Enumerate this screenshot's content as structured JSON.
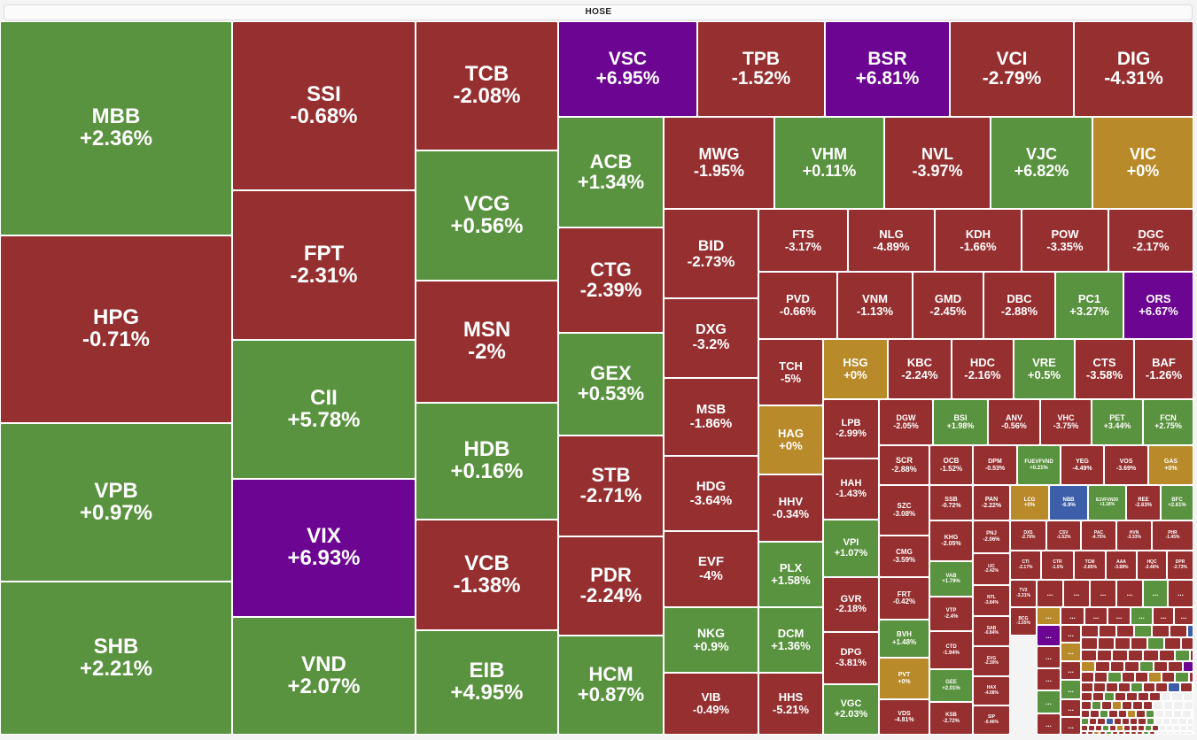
{
  "header": {
    "title": "HOSE"
  },
  "colors": {
    "up": "#5a9340",
    "down": "#963030",
    "ref": "#b98a29",
    "ceiling": "#6c0591",
    "floor": "#3d5ea8",
    "faint": "#f0f0f0"
  },
  "overflow_label": "...",
  "tiles": [
    {
      "sym": "MBB",
      "pct": "+2.36%",
      "status": "up"
    },
    {
      "sym": "HPG",
      "pct": "-0.71%",
      "status": "down"
    },
    {
      "sym": "VPB",
      "pct": "+0.97%",
      "status": "up"
    },
    {
      "sym": "SHB",
      "pct": "+2.21%",
      "status": "up"
    },
    {
      "sym": "SSI",
      "pct": "-0.68%",
      "status": "down"
    },
    {
      "sym": "FPT",
      "pct": "-2.31%",
      "status": "down"
    },
    {
      "sym": "CII",
      "pct": "+5.78%",
      "status": "up"
    },
    {
      "sym": "VIX",
      "pct": "+6.93%",
      "status": "ceiling"
    },
    {
      "sym": "VND",
      "pct": "+2.07%",
      "status": "up"
    },
    {
      "sym": "TCB",
      "pct": "-2.08%",
      "status": "down"
    },
    {
      "sym": "VCG",
      "pct": "+0.56%",
      "status": "up"
    },
    {
      "sym": "MSN",
      "pct": "-2%",
      "status": "down"
    },
    {
      "sym": "HDB",
      "pct": "+0.16%",
      "status": "up"
    },
    {
      "sym": "VCB",
      "pct": "-1.38%",
      "status": "down"
    },
    {
      "sym": "EIB",
      "pct": "+4.95%",
      "status": "up"
    },
    {
      "sym": "VSC",
      "pct": "+6.95%",
      "status": "ceiling"
    },
    {
      "sym": "TPB",
      "pct": "-1.52%",
      "status": "down"
    },
    {
      "sym": "BSR",
      "pct": "+6.81%",
      "status": "ceiling"
    },
    {
      "sym": "VCI",
      "pct": "-2.79%",
      "status": "down"
    },
    {
      "sym": "DIG",
      "pct": "-4.31%",
      "status": "down"
    },
    {
      "sym": "ACB",
      "pct": "+1.34%",
      "status": "up"
    },
    {
      "sym": "CTG",
      "pct": "-2.39%",
      "status": "down"
    },
    {
      "sym": "GEX",
      "pct": "+0.53%",
      "status": "up"
    },
    {
      "sym": "STB",
      "pct": "-2.71%",
      "status": "down"
    },
    {
      "sym": "PDR",
      "pct": "-2.24%",
      "status": "down"
    },
    {
      "sym": "HCM",
      "pct": "+0.87%",
      "status": "up"
    },
    {
      "sym": "MWG",
      "pct": "-1.95%",
      "status": "down"
    },
    {
      "sym": "VHM",
      "pct": "+0.11%",
      "status": "up"
    },
    {
      "sym": "NVL",
      "pct": "-3.97%",
      "status": "down"
    },
    {
      "sym": "VJC",
      "pct": "+6.82%",
      "status": "up"
    },
    {
      "sym": "VIC",
      "pct": "+0%",
      "status": "ref"
    },
    {
      "sym": "BID",
      "pct": "-2.73%",
      "status": "down"
    },
    {
      "sym": "DXG",
      "pct": "-3.2%",
      "status": "down"
    },
    {
      "sym": "MSB",
      "pct": "-1.86%",
      "status": "down"
    },
    {
      "sym": "HDG",
      "pct": "-3.64%",
      "status": "down"
    },
    {
      "sym": "EVF",
      "pct": "-4%",
      "status": "down"
    },
    {
      "sym": "NKG",
      "pct": "+0.9%",
      "status": "up"
    },
    {
      "sym": "VIB",
      "pct": "-0.49%",
      "status": "down"
    },
    {
      "sym": "FTS",
      "pct": "-3.17%",
      "status": "down"
    },
    {
      "sym": "NLG",
      "pct": "-4.89%",
      "status": "down"
    },
    {
      "sym": "KDH",
      "pct": "-1.66%",
      "status": "down"
    },
    {
      "sym": "POW",
      "pct": "-3.35%",
      "status": "down"
    },
    {
      "sym": "DGC",
      "pct": "-2.17%",
      "status": "down"
    },
    {
      "sym": "PVD",
      "pct": "-0.66%",
      "status": "down"
    },
    {
      "sym": "VNM",
      "pct": "-1.13%",
      "status": "down"
    },
    {
      "sym": "GMD",
      "pct": "-2.45%",
      "status": "down"
    },
    {
      "sym": "DBC",
      "pct": "-2.88%",
      "status": "down"
    },
    {
      "sym": "PC1",
      "pct": "+3.27%",
      "status": "up"
    },
    {
      "sym": "ORS",
      "pct": "+6.67%",
      "status": "ceiling"
    },
    {
      "sym": "TCH",
      "pct": "-5%",
      "status": "down"
    },
    {
      "sym": "HSG",
      "pct": "+0%",
      "status": "ref"
    },
    {
      "sym": "KBC",
      "pct": "-2.24%",
      "status": "down"
    },
    {
      "sym": "HDC",
      "pct": "-2.16%",
      "status": "down"
    },
    {
      "sym": "VRE",
      "pct": "+0.5%",
      "status": "up"
    },
    {
      "sym": "CTS",
      "pct": "-3.58%",
      "status": "down"
    },
    {
      "sym": "BAF",
      "pct": "-1.26%",
      "status": "down"
    },
    {
      "sym": "HAG",
      "pct": "+0%",
      "status": "ref"
    },
    {
      "sym": "HHV",
      "pct": "-0.34%",
      "status": "down"
    },
    {
      "sym": "PLX",
      "pct": "+1.58%",
      "status": "up"
    },
    {
      "sym": "DCM",
      "pct": "+1.36%",
      "status": "up"
    },
    {
      "sym": "HHS",
      "pct": "-5.21%",
      "status": "down"
    },
    {
      "sym": "LPB",
      "pct": "-2.99%",
      "status": "down"
    },
    {
      "sym": "HAH",
      "pct": "-1.43%",
      "status": "down"
    },
    {
      "sym": "VPI",
      "pct": "+1.07%",
      "status": "up"
    },
    {
      "sym": "GVR",
      "pct": "-2.18%",
      "status": "down"
    },
    {
      "sym": "DPG",
      "pct": "-3.81%",
      "status": "down"
    },
    {
      "sym": "VGC",
      "pct": "+2.03%",
      "status": "up"
    },
    {
      "sym": "DGW",
      "pct": "-2.05%",
      "status": "down"
    },
    {
      "sym": "BSI",
      "pct": "+1.98%",
      "status": "up"
    },
    {
      "sym": "ANV",
      "pct": "-0.56%",
      "status": "down"
    },
    {
      "sym": "VHC",
      "pct": "-3.75%",
      "status": "down"
    },
    {
      "sym": "PET",
      "pct": "+3.44%",
      "status": "up"
    },
    {
      "sym": "FCN",
      "pct": "+2.75%",
      "status": "up"
    },
    {
      "sym": "SCR",
      "pct": "-2.88%",
      "status": "down"
    },
    {
      "sym": "SZC",
      "pct": "-3.08%",
      "status": "down"
    },
    {
      "sym": "CMG",
      "pct": "-3.59%",
      "status": "down"
    },
    {
      "sym": "FRT",
      "pct": "-0.42%",
      "status": "down"
    },
    {
      "sym": "BVH",
      "pct": "+1.48%",
      "status": "up"
    },
    {
      "sym": "PVT",
      "pct": "+0%",
      "status": "ref"
    },
    {
      "sym": "VDS",
      "pct": "-4.81%",
      "status": "down"
    },
    {
      "sym": "OCB",
      "pct": "-1.52%",
      "status": "down"
    },
    {
      "sym": "DPM",
      "pct": "-0.53%",
      "status": "down"
    },
    {
      "sym": "FUEVFVND",
      "pct": "+0.21%",
      "status": "up"
    },
    {
      "sym": "YEG",
      "pct": "-4.49%",
      "status": "down"
    },
    {
      "sym": "VOS",
      "pct": "-3.69%",
      "status": "down"
    },
    {
      "sym": "GAS",
      "pct": "+0%",
      "status": "ref"
    },
    {
      "sym": "SSB",
      "pct": "-0.72%",
      "status": "down"
    },
    {
      "sym": "PAN",
      "pct": "-2.22%",
      "status": "down"
    },
    {
      "sym": "LCG",
      "pct": "+0%",
      "status": "ref"
    },
    {
      "sym": "NBB",
      "pct": "-6.9%",
      "status": "floor"
    },
    {
      "sym": "E1VFVN30",
      "pct": "+1.18%",
      "status": "up"
    },
    {
      "sym": "REE",
      "pct": "-2.63%",
      "status": "down"
    },
    {
      "sym": "BFC",
      "pct": "+2.61%",
      "status": "up"
    },
    {
      "sym": "KHG",
      "pct": "-2.05%",
      "status": "down"
    },
    {
      "sym": "VAB",
      "pct": "+1.79%",
      "status": "up"
    },
    {
      "sym": "VTP",
      "pct": "-2.4%",
      "status": "down"
    },
    {
      "sym": "CTD",
      "pct": "-1.94%",
      "status": "down"
    },
    {
      "sym": "GEE",
      "pct": "+2.01%",
      "status": "up"
    },
    {
      "sym": "KSB",
      "pct": "-2.72%",
      "status": "down"
    },
    {
      "sym": "PNJ",
      "pct": "-2.06%",
      "status": "down"
    },
    {
      "sym": "IJC",
      "pct": "-2.42%",
      "status": "down"
    },
    {
      "sym": "NTL",
      "pct": "-3.84%",
      "status": "down"
    },
    {
      "sym": "SAB",
      "pct": "-0.84%",
      "status": "down"
    },
    {
      "sym": "EVG",
      "pct": "-2.39%",
      "status": "down"
    },
    {
      "sym": "HAX",
      "pct": "-4.08%",
      "status": "down"
    },
    {
      "sym": "SIP",
      "pct": "-0.46%",
      "status": "down"
    },
    {
      "sym": "DXS",
      "pct": "-2.76%",
      "status": "down"
    },
    {
      "sym": "CSV",
      "pct": "-1.52%",
      "status": "down"
    },
    {
      "sym": "PAC",
      "pct": "-4.75%",
      "status": "down"
    },
    {
      "sym": "HVN",
      "pct": "-3.33%",
      "status": "down"
    },
    {
      "sym": "PHR",
      "pct": "-1.45%",
      "status": "down"
    },
    {
      "sym": "CTI",
      "pct": "-2.17%",
      "status": "down"
    },
    {
      "sym": "CTR",
      "pct": "-1.5%",
      "status": "down"
    },
    {
      "sym": "TCM",
      "pct": "-2.85%",
      "status": "down"
    },
    {
      "sym": "AAA",
      "pct": "-3.88%",
      "status": "down"
    },
    {
      "sym": "HQC",
      "pct": "-2.46%",
      "status": "down"
    },
    {
      "sym": "DPR",
      "pct": "-2.73%",
      "status": "down"
    },
    {
      "sym": "TV2",
      "pct": "-3.31%",
      "status": "down"
    },
    {
      "sym": "BCG",
      "pct": "-1.55%",
      "status": "down"
    }
  ]
}
